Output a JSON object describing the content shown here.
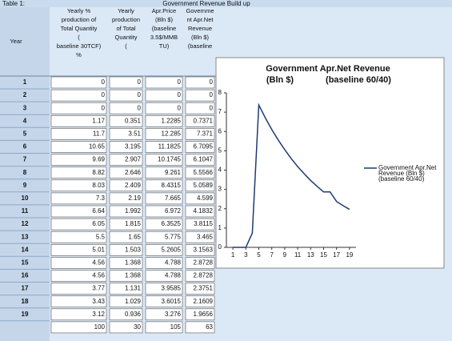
{
  "header": {
    "label": "Table 1:",
    "title": "Government Revenue Build up"
  },
  "table": {
    "columns": [
      [
        "Year"
      ],
      [
        "Yearly %",
        "production of",
        "Total Quantity",
        "(",
        "baseline 30TCF)",
        "%"
      ],
      [
        "Yearly",
        "production",
        "of Total",
        "Quantity",
        "("
      ],
      [
        "Apr.Price",
        "(Bln $)",
        "(baseline",
        "3.5$/MMB",
        "TU)"
      ],
      [
        "Governme",
        "nt Apr.Net",
        "Revenue",
        "(Bln $)",
        "(baseline"
      ]
    ],
    "rows": [
      [
        "1",
        "0",
        "0",
        "0",
        "0"
      ],
      [
        "2",
        "0",
        "0",
        "0",
        "0"
      ],
      [
        "3",
        "0",
        "0",
        "0",
        "0"
      ],
      [
        "4",
        "1.17",
        "0.351",
        "1.2285",
        "0.7371"
      ],
      [
        "5",
        "11.7",
        "3.51",
        "12.285",
        "7.371"
      ],
      [
        "6",
        "10.65",
        "3.195",
        "11.1825",
        "6.7095"
      ],
      [
        "7",
        "9.69",
        "2.907",
        "10.1745",
        "6.1047"
      ],
      [
        "8",
        "8.82",
        "2.646",
        "9.261",
        "5.5566"
      ],
      [
        "9",
        "8.03",
        "2.409",
        "8.4315",
        "5.0589"
      ],
      [
        "10",
        "7.3",
        "2.19",
        "7.665",
        "4.599"
      ],
      [
        "11",
        "6.64",
        "1.992",
        "6.972",
        "4.1832"
      ],
      [
        "12",
        "6.05",
        "1.815",
        "6.3525",
        "3.8115"
      ],
      [
        "13",
        "5.5",
        "1.65",
        "5.775",
        "3.465"
      ],
      [
        "14",
        "5.01",
        "1.503",
        "5.2605",
        "3.1563"
      ],
      [
        "15",
        "4.56",
        "1.368",
        "4.788",
        "2.8728"
      ],
      [
        "16",
        "4.56",
        "1.368",
        "4.788",
        "2.8728"
      ],
      [
        "17",
        "3.77",
        "1.131",
        "3.9585",
        "2.3751"
      ],
      [
        "18",
        "3.43",
        "1.029",
        "3.6015",
        "2.1609"
      ],
      [
        "19",
        "3.12",
        "0.936",
        "3.276",
        "1.9656"
      ]
    ],
    "totals": [
      "100",
      "30",
      "105",
      "63"
    ]
  },
  "chart_data": {
    "type": "line",
    "title": [
      "Government Apr.Net Revenue",
      "(Bln $)",
      "(baseline 60/40)"
    ],
    "x": [
      1,
      2,
      3,
      4,
      5,
      6,
      7,
      8,
      9,
      10,
      11,
      12,
      13,
      14,
      15,
      16,
      17,
      18,
      19
    ],
    "series": [
      {
        "name": [
          "Government Apr.Net",
          "Revenue  (Bln $)",
          "(baseline 60/40)"
        ],
        "color": "#1f3b73",
        "values": [
          0,
          0,
          0,
          0.7371,
          7.371,
          6.7095,
          6.1047,
          5.5566,
          5.0589,
          4.599,
          4.1832,
          3.8115,
          3.465,
          3.1563,
          2.8728,
          2.8728,
          2.3751,
          2.1609,
          1.9656
        ]
      }
    ],
    "xlim": [
      0,
      20
    ],
    "xticks": [
      1,
      3,
      5,
      7,
      9,
      11,
      13,
      15,
      17,
      19
    ],
    "ylim": [
      0,
      8
    ],
    "yticks": [
      0,
      1,
      2,
      3,
      4,
      5,
      6,
      7,
      8
    ],
    "legend": "right"
  }
}
